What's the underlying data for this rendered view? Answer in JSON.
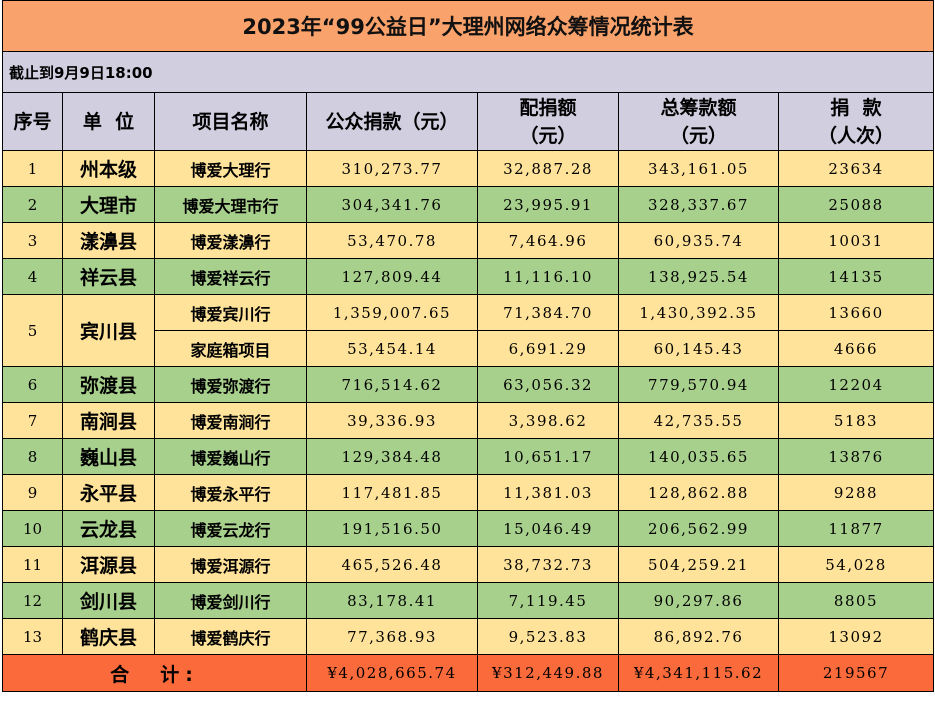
{
  "title": "2023年“99公益日”大理州网络众筹情况统计表",
  "cutoff": "截止到9月9日18:00",
  "headers": {
    "seq": "序号",
    "unit": "单  位",
    "project": "项目名称",
    "public_donation": "公众捐款（元）",
    "matching_l1": "配捐额",
    "matching_l2": "（元）",
    "total_l1": "总筹款额",
    "total_l2": "（元）",
    "donations_l1": "捐  款",
    "donations_l2": "（人次）"
  },
  "rows": [
    {
      "seq": "1",
      "unit": "州本级",
      "project": "博爱大理行",
      "public": "310,273.77",
      "match": "32,887.28",
      "total": "343,161.05",
      "count": "23634",
      "color": "#ffe39a"
    },
    {
      "seq": "2",
      "unit": "大理市",
      "project": "博爱大理市行",
      "public": "304,341.76",
      "match": "23,995.91",
      "total": "328,337.67",
      "count": "25088",
      "color": "#a8d08d"
    },
    {
      "seq": "3",
      "unit": "漾濞县",
      "project": "博爱漾濞行",
      "public": "53,470.78",
      "match": "7,464.96",
      "total": "60,935.74",
      "count": "10031",
      "color": "#ffe39a"
    },
    {
      "seq": "4",
      "unit": "祥云县",
      "project": "博爱祥云行",
      "public": "127,809.44",
      "match": "11,116.10",
      "total": "138,925.54",
      "count": "14135",
      "color": "#a8d08d"
    },
    {
      "seq": "5",
      "unit": "宾川县",
      "project": "博爱宾川行",
      "public": "1,359,007.65",
      "match": "71,384.70",
      "total": "1,430,392.35",
      "count": "13660",
      "color": "#ffe39a"
    },
    {
      "seq": "",
      "unit": "",
      "project": "家庭箱项目",
      "public": "53,454.14",
      "match": "6,691.29",
      "total": "60,145.43",
      "count": "4666",
      "color": "#ffe39a"
    },
    {
      "seq": "6",
      "unit": "弥渡县",
      "project": "博爱弥渡行",
      "public": "716,514.62",
      "match": "63,056.32",
      "total": "779,570.94",
      "count": "12204",
      "color": "#a8d08d"
    },
    {
      "seq": "7",
      "unit": "南涧县",
      "project": "博爱南涧行",
      "public": "39,336.93",
      "match": "3,398.62",
      "total": "42,735.55",
      "count": "5183",
      "color": "#ffe39a"
    },
    {
      "seq": "8",
      "unit": "巍山县",
      "project": "博爱巍山行",
      "public": "129,384.48",
      "match": "10,651.17",
      "total": "140,035.65",
      "count": "13876",
      "color": "#a8d08d"
    },
    {
      "seq": "9",
      "unit": "永平县",
      "project": "博爱永平行",
      "public": "117,481.85",
      "match": "11,381.03",
      "total": "128,862.88",
      "count": "9288",
      "color": "#ffe39a"
    },
    {
      "seq": "10",
      "unit": "云龙县",
      "project": "博爱云龙行",
      "public": "191,516.50",
      "match": "15,046.49",
      "total": "206,562.99",
      "count": "11877",
      "color": "#a8d08d"
    },
    {
      "seq": "11",
      "unit": "洱源县",
      "project": "博爱洱源行",
      "public": "465,526.48",
      "match": "38,732.73",
      "total": "504,259.21",
      "count": "54,028",
      "color": "#ffe39a"
    },
    {
      "seq": "12",
      "unit": "剑川县",
      "project": "博爱剑川行",
      "public": "83,178.41",
      "match": "7,119.45",
      "total": "90,297.86",
      "count": "8805",
      "color": "#a8d08d"
    },
    {
      "seq": "13",
      "unit": "鹤庆县",
      "project": "博爱鹤庆行",
      "public": "77,368.93",
      "match": "9,523.83",
      "total": "86,892.76",
      "count": "13092",
      "color": "#ffe39a"
    }
  ],
  "totals": {
    "label": "合  计:",
    "public": "¥4,028,665.74",
    "match": "¥312,449.88",
    "total": "¥4,341,115.62",
    "count": "219567"
  },
  "colors": {
    "title_bg": "#f9a26b",
    "header_bg": "#d0cedf",
    "row_yellow": "#ffe39a",
    "row_green": "#a8d08d",
    "total_bg": "#fa6a3a"
  }
}
